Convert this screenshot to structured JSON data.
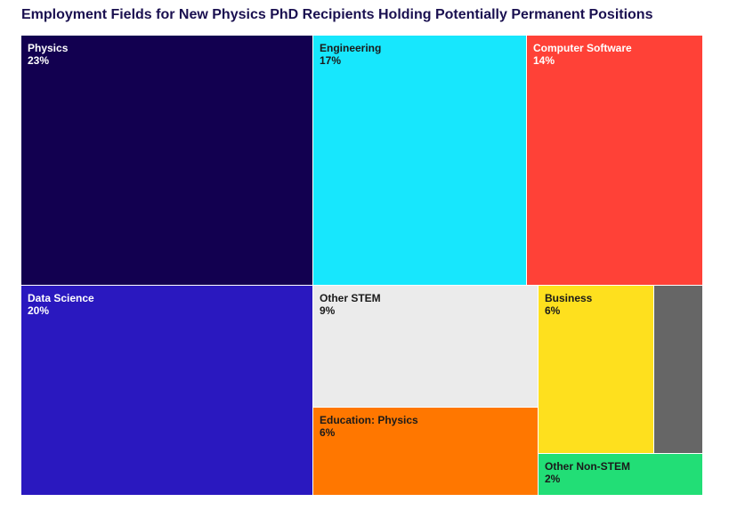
{
  "title": "Employment Fields for New Physics PhD Recipients Holding Potentially Permanent Positions",
  "chart_data": {
    "type": "treemap",
    "title": "Employment Fields for New Physics PhD Recipients Holding Potentially Permanent Positions",
    "items": [
      {
        "label": "Physics",
        "value_text": "23%",
        "value": 23,
        "color": "#120050",
        "text_color": "#ffffff"
      },
      {
        "label": "Engineering",
        "value_text": "17%",
        "value": 17,
        "color": "#17e7fd",
        "text_color": "#1a1a1a"
      },
      {
        "label": "Computer Software",
        "value_text": "14%",
        "value": 14,
        "color": "#ff4137",
        "text_color": "#ffffff"
      },
      {
        "label": "Data Science",
        "value_text": "20%",
        "value": 20,
        "color": "#2a18bf",
        "text_color": "#ffffff"
      },
      {
        "label": "Other STEM",
        "value_text": "9%",
        "value": 9,
        "color": "#ebebeb",
        "text_color": "#1a1a1a"
      },
      {
        "label": "Education: Physics",
        "value_text": "6%",
        "value": 6,
        "color": "#ff7700",
        "text_color": "#1a1a1a"
      },
      {
        "label": "Business",
        "value_text": "6%",
        "value": 6,
        "color": "#fee01e",
        "text_color": "#1a1a1a"
      },
      {
        "label": "",
        "value_text": "",
        "value": 2,
        "color": "#666666",
        "text_color": "#ffffff"
      },
      {
        "label": "Other Non-STEM",
        "value_text": "2%",
        "value": 2,
        "color": "#22de76",
        "text_color": "#1a1a1a"
      }
    ]
  }
}
